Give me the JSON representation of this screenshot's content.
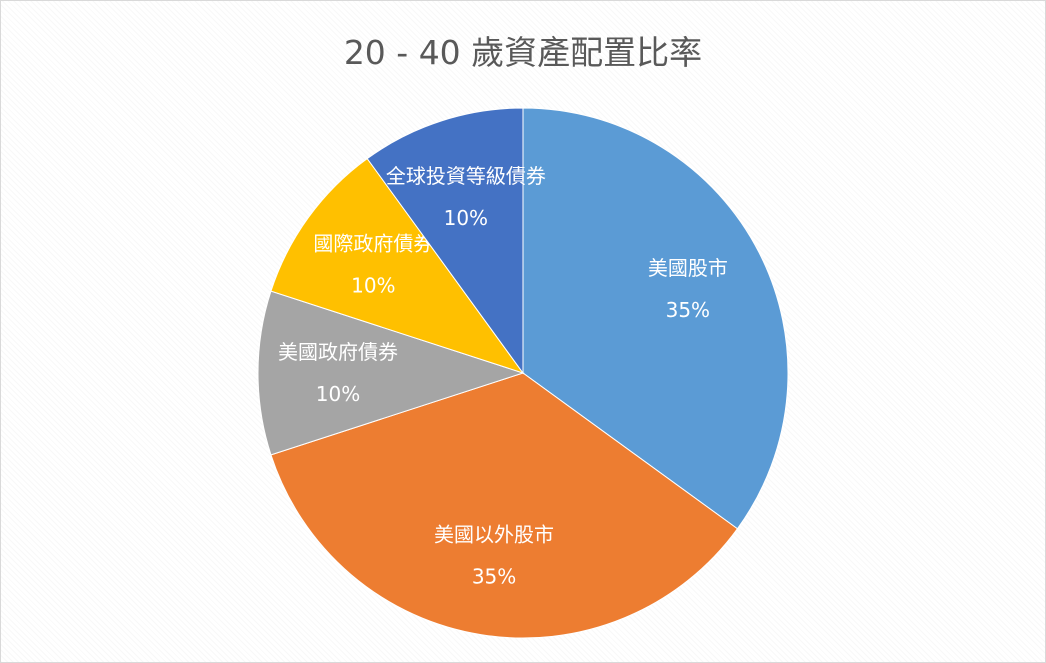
{
  "chart_data": {
    "type": "pie",
    "title": "20 - 40 歲資產配置比率",
    "slices": [
      {
        "label": "美國股市",
        "value": 35,
        "value_label": "35%",
        "color": "#5B9BD5"
      },
      {
        "label": "美國以外股市",
        "value": 35,
        "value_label": "35%",
        "color": "#ED7D31"
      },
      {
        "label": "美國政府債券",
        "value": 10,
        "value_label": "10%",
        "color": "#A5A5A5"
      },
      {
        "label": "國際政府債券",
        "value": 10,
        "value_label": "10%",
        "color": "#FFC000"
      },
      {
        "label": "全球投資等級債券",
        "value": 10,
        "value_label": "10%",
        "color": "#4472C4"
      }
    ],
    "legend": "none",
    "data_labels": "inside"
  }
}
